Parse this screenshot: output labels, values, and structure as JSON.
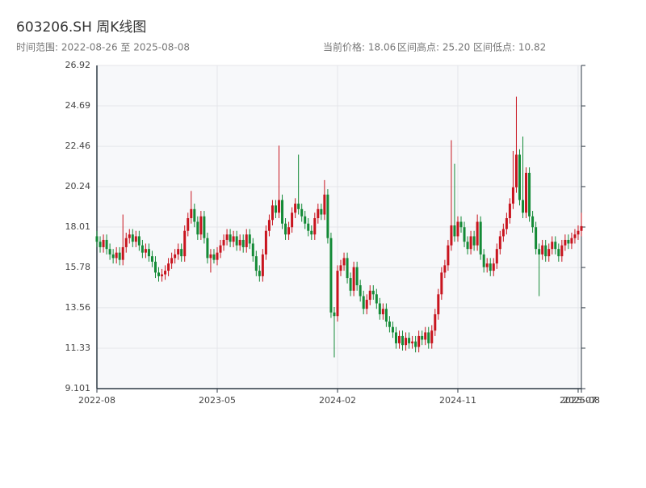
{
  "chart_data": {
    "type": "candlestick",
    "title": "603206.SH 周K线图",
    "subtitle": "时间范围: 2022-08-26 至 2025-08-08",
    "stats": [
      "当前价格: 18.06",
      "区间高点: 25.20",
      "区间低点: 10.82"
    ],
    "up_color": "#c8141e",
    "down_color": "#138a36",
    "grid": true,
    "ylim": [
      9.101,
      26.92
    ],
    "yticks": [
      9.101,
      11.33,
      13.56,
      15.78,
      18.01,
      20.24,
      22.46,
      24.69,
      26.92
    ],
    "categories": [
      "2022-08",
      null,
      null,
      null,
      null,
      null,
      null,
      null,
      null,
      null,
      null,
      null,
      null,
      null,
      null,
      null,
      null,
      null,
      null,
      null,
      null,
      null,
      null,
      null,
      null,
      null,
      null,
      null,
      null,
      null,
      null,
      null,
      null,
      null,
      null,
      null,
      null,
      "2023-05",
      null,
      null,
      null,
      null,
      null,
      null,
      null,
      null,
      null,
      null,
      null,
      null,
      null,
      null,
      null,
      null,
      null,
      null,
      null,
      null,
      null,
      null,
      null,
      null,
      null,
      null,
      null,
      null,
      null,
      null,
      null,
      null,
      null,
      null,
      null,
      null,
      "2024-02",
      null,
      null,
      null,
      null,
      null,
      null,
      null,
      null,
      null,
      null,
      null,
      null,
      null,
      null,
      null,
      null,
      null,
      null,
      null,
      null,
      null,
      null,
      null,
      null,
      null,
      null,
      null,
      null,
      null,
      null,
      null,
      null,
      null,
      null,
      null,
      null,
      "2024-11",
      null,
      null,
      null,
      null,
      null,
      null,
      null,
      null,
      null,
      null,
      null,
      null,
      null,
      null,
      null,
      null,
      null,
      null,
      null,
      null,
      null,
      null,
      null,
      null,
      null,
      null,
      null,
      null,
      null,
      null,
      null,
      null,
      null,
      null,
      null,
      null,
      "2025-07",
      "2025-08"
    ],
    "open": [
      17.5,
      17.2,
      16.9,
      17.3,
      16.8,
      16.5,
      16.3,
      16.6,
      16.2,
      16.9,
      17.4,
      17.6,
      17.2,
      17.5,
      17.0,
      16.6,
      16.8,
      16.4,
      16.1,
      15.5,
      15.3,
      15.4,
      15.6,
      16.0,
      16.3,
      16.5,
      16.8,
      16.4,
      17.8,
      18.5,
      19.0,
      18.3,
      17.6,
      18.6,
      17.4,
      16.3,
      16.5,
      16.2,
      16.6,
      17.0,
      17.3,
      17.6,
      17.2,
      17.5,
      17.0,
      17.3,
      16.9,
      17.6,
      17.1,
      16.4,
      15.6,
      15.3,
      16.5,
      17.8,
      18.4,
      19.2,
      18.8,
      19.5,
      18.2,
      17.6,
      18.0,
      18.8,
      19.3,
      19.0,
      18.6,
      18.2,
      17.8,
      17.6,
      18.5,
      19.0,
      18.7,
      19.8,
      17.4,
      13.3,
      13.1,
      15.6,
      15.9,
      16.3,
      15.2,
      14.5,
      15.8,
      14.8,
      14.2,
      13.5,
      14.0,
      14.5,
      14.3,
      13.8,
      13.2,
      13.5,
      12.8,
      12.5,
      12.2,
      11.6,
      12.0,
      11.5,
      11.9,
      11.6,
      11.7,
      11.4,
      12.0,
      11.8,
      12.2,
      11.6,
      12.3,
      13.2,
      14.3,
      15.5,
      15.9,
      17.0,
      18.1,
      17.5,
      18.3,
      18.0,
      17.2,
      16.8,
      17.5,
      17.0,
      18.3,
      16.5,
      15.8,
      16.0,
      15.6,
      16.0,
      16.8,
      17.5,
      17.9,
      18.5,
      19.3,
      20.2,
      22.0,
      19.5,
      18.8,
      21.0,
      18.6,
      18.0,
      16.8,
      16.5,
      17.0,
      16.4,
      16.8,
      17.2,
      16.8,
      16.4,
      17.0,
      17.3,
      17.1,
      17.4,
      17.6,
      17.8
    ],
    "close": [
      17.2,
      16.9,
      17.3,
      16.8,
      16.5,
      16.3,
      16.6,
      16.2,
      16.9,
      17.4,
      17.6,
      17.2,
      17.5,
      17.0,
      16.6,
      16.8,
      16.4,
      16.1,
      15.5,
      15.3,
      15.4,
      15.6,
      16.0,
      16.3,
      16.5,
      16.8,
      16.4,
      17.8,
      18.5,
      19.0,
      18.3,
      17.6,
      18.6,
      17.4,
      16.3,
      16.5,
      16.2,
      16.6,
      17.0,
      17.3,
      17.6,
      17.2,
      17.5,
      17.0,
      17.3,
      16.9,
      17.6,
      17.1,
      16.4,
      15.6,
      15.3,
      16.5,
      17.8,
      18.4,
      19.2,
      18.8,
      19.5,
      18.2,
      17.6,
      18.0,
      18.8,
      19.3,
      19.0,
      18.6,
      18.2,
      17.8,
      17.6,
      18.5,
      19.0,
      18.7,
      19.8,
      17.4,
      13.3,
      13.1,
      15.6,
      15.9,
      16.3,
      15.2,
      14.5,
      15.8,
      14.8,
      14.2,
      13.5,
      14.0,
      14.5,
      14.3,
      13.8,
      13.2,
      13.5,
      12.8,
      12.5,
      12.2,
      11.6,
      12.0,
      11.5,
      11.9,
      11.6,
      11.7,
      11.4,
      12.0,
      11.8,
      12.2,
      11.6,
      12.3,
      13.2,
      14.3,
      15.5,
      15.9,
      17.0,
      18.1,
      17.5,
      18.3,
      18.0,
      17.2,
      16.8,
      17.5,
      17.0,
      18.3,
      16.5,
      15.8,
      16.0,
      15.6,
      16.0,
      16.8,
      17.5,
      17.9,
      18.5,
      19.3,
      20.2,
      22.0,
      19.5,
      18.8,
      21.0,
      18.6,
      18.0,
      16.8,
      16.5,
      17.0,
      16.4,
      16.8,
      17.2,
      16.8,
      16.4,
      17.0,
      17.3,
      17.1,
      17.4,
      17.6,
      17.8,
      18.06
    ],
    "high": [
      17.8,
      17.5,
      17.6,
      17.6,
      17.1,
      16.8,
      16.9,
      16.9,
      18.7,
      17.7,
      17.9,
      17.9,
      17.8,
      17.8,
      17.3,
      17.1,
      17.1,
      16.7,
      16.4,
      15.8,
      15.7,
      15.9,
      16.3,
      16.6,
      16.8,
      17.1,
      17.1,
      18.1,
      18.8,
      20.0,
      19.3,
      18.6,
      18.9,
      18.9,
      17.7,
      16.8,
      16.8,
      16.9,
      17.3,
      17.6,
      17.9,
      17.9,
      17.8,
      17.8,
      17.6,
      17.6,
      17.9,
      17.9,
      17.4,
      16.7,
      15.9,
      16.8,
      18.1,
      18.7,
      19.5,
      19.5,
      22.5,
      19.8,
      18.5,
      18.3,
      19.1,
      19.6,
      22.0,
      19.3,
      18.9,
      18.5,
      18.1,
      18.8,
      19.3,
      19.3,
      20.6,
      20.1,
      17.7,
      13.6,
      15.9,
      16.2,
      16.6,
      16.6,
      15.5,
      16.1,
      16.1,
      15.1,
      14.5,
      14.3,
      14.8,
      14.8,
      14.6,
      14.1,
      13.8,
      13.8,
      13.1,
      12.8,
      12.5,
      12.3,
      12.3,
      12.2,
      12.2,
      12.0,
      12.0,
      12.3,
      12.3,
      12.5,
      12.5,
      12.6,
      13.5,
      14.6,
      15.8,
      16.2,
      17.3,
      22.8,
      21.5,
      18.6,
      18.6,
      18.3,
      17.5,
      17.8,
      17.8,
      18.7,
      18.6,
      16.8,
      16.3,
      16.3,
      16.3,
      17.1,
      17.8,
      18.2,
      18.8,
      19.6,
      22.2,
      25.2,
      22.3,
      23.0,
      21.3,
      21.3,
      18.9,
      18.3,
      17.1,
      17.3,
      17.3,
      17.1,
      17.5,
      17.5,
      17.1,
      17.3,
      17.6,
      17.6,
      17.7,
      17.9,
      18.1,
      18.8
    ],
    "low": [
      16.9,
      16.6,
      16.6,
      16.5,
      16.2,
      16.0,
      16.0,
      15.9,
      15.9,
      16.6,
      17.1,
      16.9,
      16.9,
      16.7,
      16.3,
      16.3,
      16.1,
      15.8,
      15.2,
      15.0,
      15.0,
      15.1,
      15.3,
      15.7,
      16.0,
      16.2,
      16.1,
      16.1,
      17.5,
      18.2,
      18.0,
      17.3,
      17.3,
      17.1,
      16.0,
      15.5,
      16.0,
      15.9,
      16.3,
      16.7,
      17.0,
      16.9,
      16.9,
      16.7,
      16.7,
      16.6,
      16.6,
      16.8,
      16.1,
      15.3,
      15.0,
      15.0,
      16.2,
      17.5,
      18.1,
      18.5,
      18.5,
      17.9,
      17.3,
      17.3,
      17.7,
      18.5,
      18.7,
      18.3,
      17.9,
      17.5,
      17.3,
      17.3,
      18.2,
      18.4,
      18.4,
      17.1,
      13.0,
      10.82,
      12.8,
      15.3,
      15.6,
      14.9,
      14.2,
      14.2,
      14.5,
      13.9,
      13.2,
      13.2,
      13.7,
      14.0,
      13.5,
      12.9,
      12.9,
      12.5,
      12.2,
      11.9,
      11.3,
      11.3,
      11.2,
      11.2,
      11.3,
      11.3,
      11.1,
      11.1,
      11.5,
      11.5,
      11.3,
      11.3,
      12.0,
      12.9,
      14.0,
      15.2,
      15.6,
      16.7,
      17.2,
      17.2,
      17.7,
      16.9,
      16.5,
      16.5,
      16.7,
      16.7,
      16.2,
      15.5,
      15.5,
      15.3,
      15.3,
      15.7,
      16.5,
      17.2,
      17.6,
      18.2,
      19.0,
      19.9,
      19.2,
      18.5,
      18.5,
      18.3,
      17.7,
      16.5,
      14.2,
      16.2,
      16.1,
      16.1,
      16.5,
      16.5,
      16.1,
      16.1,
      16.7,
      16.8,
      16.8,
      17.1,
      17.3,
      17.5
    ]
  }
}
